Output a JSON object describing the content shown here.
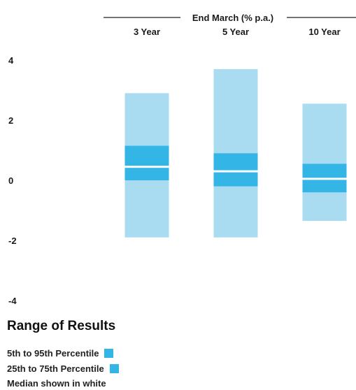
{
  "chart_data": {
    "type": "range-bar",
    "header_label": "End March (% p.a.)",
    "categories": [
      "3 Year",
      "5 Year",
      "10 Year"
    ],
    "y_ticks": [
      "4",
      "2",
      "0",
      "-2",
      "-4"
    ],
    "ylim": [
      -4,
      4
    ],
    "series": [
      {
        "category": "3 Year",
        "p5": -1.9,
        "p25": 0.0,
        "median": 0.45,
        "p75": 1.15,
        "p95": 2.9
      },
      {
        "category": "5 Year",
        "p5": -1.9,
        "p25": -0.2,
        "median": 0.3,
        "p75": 0.9,
        "p95": 3.7
      },
      {
        "category": "10 Year",
        "p5": -1.35,
        "p25": -0.4,
        "median": 0.05,
        "p75": 0.55,
        "p95": 2.55
      }
    ],
    "colors": {
      "outer_range": "#a9dcf0",
      "inner_range": "#33b6e6",
      "median": "#ffffff"
    },
    "legend": {
      "title": "Range of Results",
      "items": [
        {
          "label": "5th to 95th Percentile",
          "color": "#33b6e6"
        },
        {
          "label": "25th to 75th Percentile",
          "color": "#33b6e6"
        }
      ],
      "note": "Median shown in white"
    }
  }
}
